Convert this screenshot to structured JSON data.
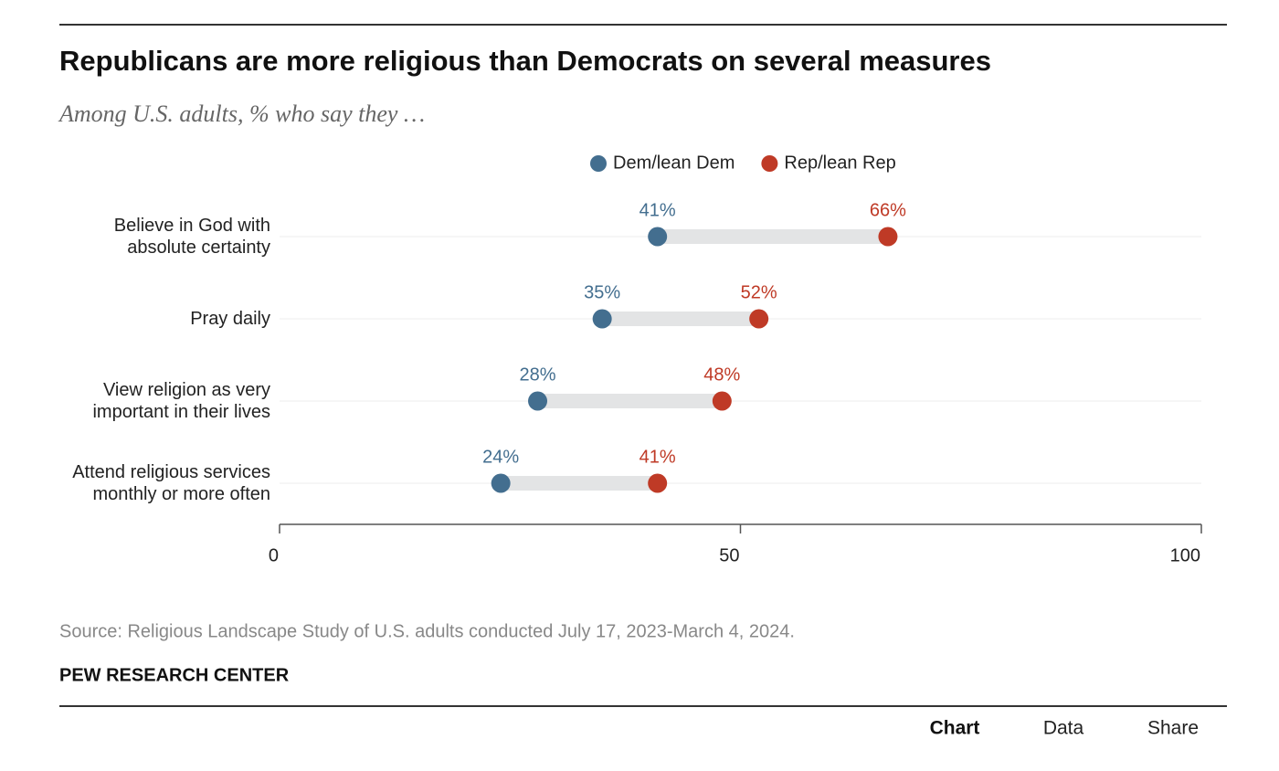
{
  "chart_data": {
    "type": "dot",
    "title": "Republicans are more religious than Democrats on several measures",
    "subtitle": "Among U.S. adults, % who say they …",
    "categories": [
      "Believe in God with absolute certainty",
      "Pray daily",
      "View religion as very important in their lives",
      "Attend religious services monthly or more often"
    ],
    "series": [
      {
        "name": "Dem/lean Dem",
        "color": "#436e8f",
        "values": [
          41,
          35,
          28,
          24
        ],
        "value_labels": [
          "41%",
          "35%",
          "28%",
          "24%"
        ]
      },
      {
        "name": "Rep/lean Rep",
        "color": "#bf3a26",
        "values": [
          66,
          52,
          48,
          41
        ],
        "value_labels": [
          "66%",
          "52%",
          "48%",
          "41%"
        ]
      }
    ],
    "xlim": [
      0,
      100
    ],
    "xticks": [
      0,
      50,
      100
    ],
    "grid": true,
    "source": "Source: Religious Landscape Study of U.S. adults conducted July 17, 2023-March 4, 2024.",
    "credit": "PEW RESEARCH CENTER"
  },
  "tabs": [
    "Chart",
    "Data",
    "Share"
  ]
}
